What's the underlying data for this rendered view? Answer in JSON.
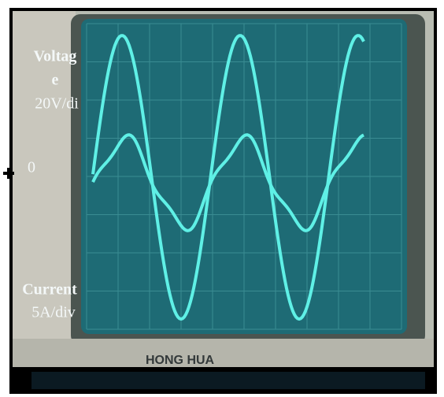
{
  "labels": {
    "voltage_line1": "Voltag",
    "voltage_line2": "e",
    "voltage_scale": "20V/di",
    "zero": "0",
    "current": "Current",
    "current_scale": "5A/div"
  },
  "brand": "HONG HUA"
}
